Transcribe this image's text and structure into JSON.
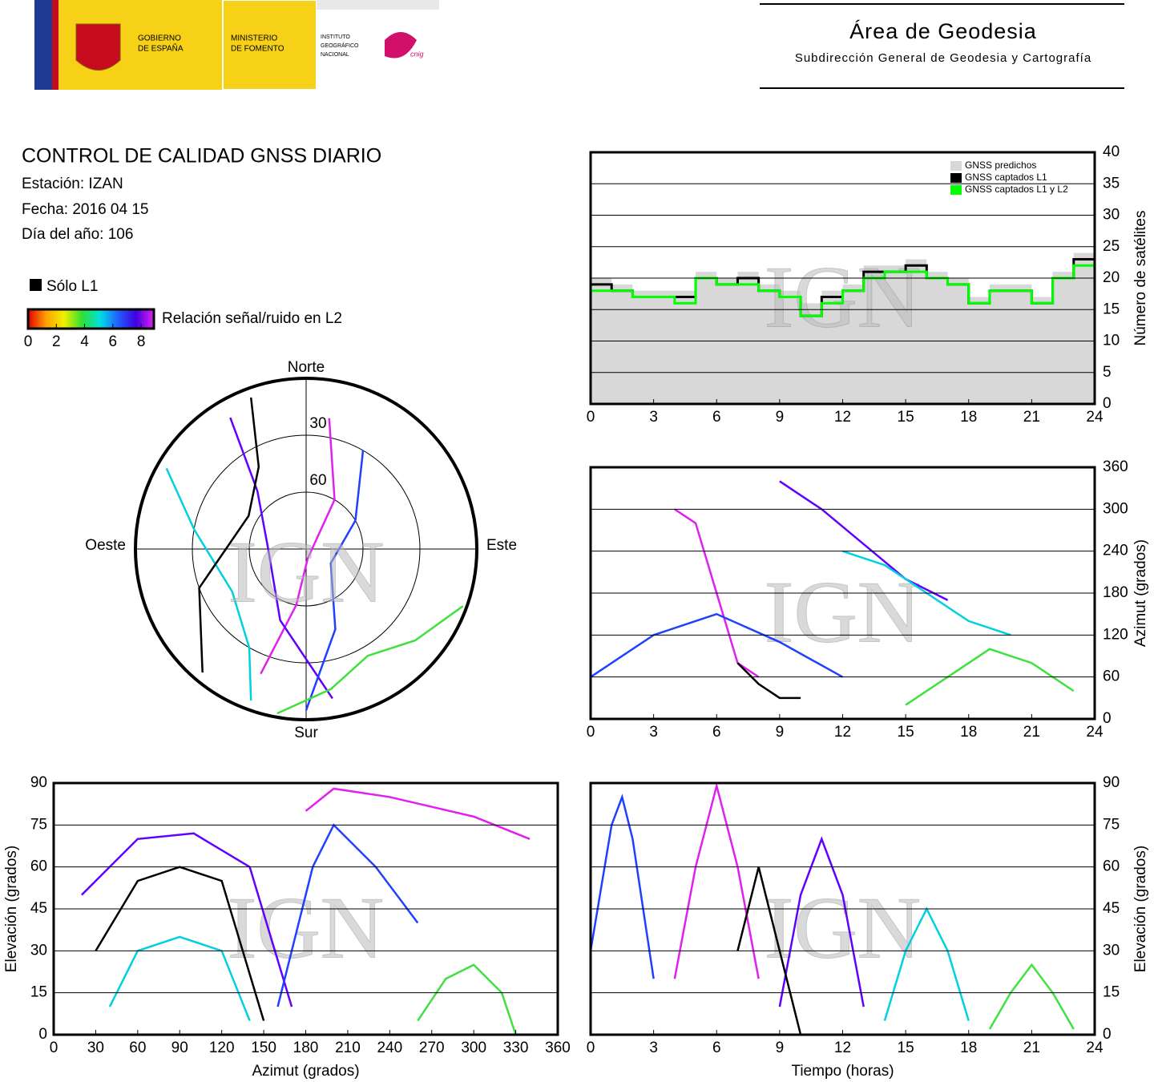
{
  "header": {
    "gobierno": [
      "GOBIERNO",
      "DE ESPAÑA"
    ],
    "ministerio": [
      "MINISTERIO",
      "DE FOMENTO"
    ],
    "instituto": [
      "INSTITUTO",
      "GEOGRÁFICO",
      "NACIONAL"
    ],
    "cnig": "cnig",
    "area": "Área de Geodesia",
    "subdireccion": "Subdirección General de Geodesia y Cartografía"
  },
  "info": {
    "title": "CONTROL DE CALIDAD GNSS DIARIO",
    "station": "Estación: IZAN",
    "date": "Fecha: 2016 04 15",
    "doy": "Día del año: 106"
  },
  "legend": {
    "l1_only": "Sólo L1",
    "snr_label": "Relación señal/ruido en L2",
    "snr_ticks": [
      0,
      2,
      4,
      6,
      8
    ],
    "snr_lim": [
      0,
      8.9
    ],
    "snr_colors": [
      "#e00000",
      "#ffa000",
      "#f0f000",
      "#30e030",
      "#00e0e0",
      "#2060ff",
      "#4000e0",
      "#e020f0"
    ]
  },
  "chart_data": [
    {
      "type": "step",
      "watermark": "IGN",
      "ylabel": "Número de satélites",
      "xlim": [
        0,
        24
      ],
      "ylim": [
        0,
        40
      ],
      "xticks": [
        0,
        3,
        6,
        9,
        12,
        15,
        18,
        21,
        24
      ],
      "yticks": [
        0,
        5,
        10,
        15,
        20,
        25,
        30,
        35,
        40
      ],
      "grid": true,
      "legend": "upper right",
      "x": [
        0,
        1,
        2,
        3,
        4,
        5,
        6,
        7,
        8,
        9,
        10,
        11,
        12,
        13,
        14,
        15,
        16,
        17,
        18,
        19,
        20,
        21,
        22,
        23,
        24
      ],
      "series": [
        {
          "name": "GNSS predichos",
          "color": "#d8d8d8",
          "fill": true,
          "values": [
            20,
            19,
            18,
            18,
            18,
            21,
            20,
            21,
            19,
            18,
            16,
            18,
            19,
            22,
            22,
            23,
            21,
            20,
            17,
            19,
            19,
            17,
            21,
            24,
            21
          ]
        },
        {
          "name": "GNSS captados L1",
          "color": "#000000",
          "values": [
            19,
            18,
            17,
            17,
            17,
            20,
            19,
            20,
            18,
            17,
            14,
            17,
            18,
            21,
            21,
            22,
            20,
            19,
            16,
            18,
            18,
            16,
            20,
            23,
            20
          ]
        },
        {
          "name": "GNSS captados L1 y L2",
          "color": "#00ff00",
          "values": [
            18,
            18,
            17,
            17,
            16,
            20,
            19,
            19,
            18,
            17,
            14,
            16,
            18,
            20,
            21,
            21,
            20,
            19,
            16,
            18,
            18,
            16,
            20,
            22,
            19
          ]
        }
      ]
    },
    {
      "type": "polar",
      "watermark": "IGN",
      "directions": {
        "north": "Norte",
        "south": "Sur",
        "east": "Este",
        "west": "Oeste"
      },
      "rlim": [
        0,
        90
      ],
      "rticks": [
        30,
        60
      ],
      "series": [
        {
          "color": "#e020f0",
          "x": [
            200,
            190,
            170,
            30,
            10
          ],
          "values": [
            20,
            60,
            85,
            60,
            20
          ]
        },
        {
          "color": "#6000ff",
          "x": [
            330,
            320,
            270,
            200,
            170
          ],
          "values": [
            10,
            50,
            70,
            50,
            10
          ]
        },
        {
          "color": "#2040ff",
          "x": [
            30,
            60,
            120,
            160,
            180
          ],
          "values": [
            30,
            60,
            75,
            45,
            5
          ]
        },
        {
          "color": "#00d0e0",
          "x": [
            300,
            280,
            240,
            210,
            200
          ],
          "values": [
            5,
            30,
            45,
            30,
            5
          ]
        },
        {
          "color": "#40e040",
          "x": [
            110,
            130,
            150,
            170,
            190
          ],
          "values": [
            2,
            15,
            25,
            15,
            2
          ]
        },
        {
          "color": "#000000",
          "x": [
            340,
            330,
            300,
            250,
            220
          ],
          "values": [
            5,
            40,
            55,
            30,
            5
          ]
        }
      ]
    },
    {
      "type": "line",
      "watermark": "IGN",
      "ylabel": "Azimut (grados)",
      "xlim": [
        0,
        24
      ],
      "ylim": [
        0,
        360
      ],
      "xticks": [
        0,
        3,
        6,
        9,
        12,
        15,
        18,
        21,
        24
      ],
      "yticks": [
        0,
        60,
        120,
        180,
        240,
        300,
        360
      ],
      "grid": true,
      "series": [
        {
          "color": "#e020f0",
          "x": [
            4,
            5,
            6,
            7,
            8
          ],
          "values": [
            300,
            280,
            180,
            80,
            60
          ]
        },
        {
          "color": "#6000ff",
          "x": [
            9,
            11,
            13,
            15,
            17
          ],
          "values": [
            340,
            300,
            250,
            200,
            170
          ]
        },
        {
          "color": "#2040ff",
          "x": [
            0,
            3,
            6,
            9,
            12
          ],
          "values": [
            60,
            120,
            150,
            110,
            60
          ]
        },
        {
          "color": "#00d0e0",
          "x": [
            12,
            14,
            16,
            18,
            20
          ],
          "values": [
            240,
            220,
            180,
            140,
            120
          ]
        },
        {
          "color": "#40e040",
          "x": [
            15,
            17,
            19,
            21,
            23
          ],
          "values": [
            20,
            60,
            100,
            80,
            40
          ]
        },
        {
          "color": "#000000",
          "x": [
            7,
            8,
            9,
            10
          ],
          "values": [
            80,
            50,
            30,
            30
          ]
        }
      ]
    },
    {
      "type": "line",
      "watermark": "IGN",
      "xlabel": "Azimut (grados)",
      "ylabel": "Elevación (grados)",
      "xlim": [
        0,
        360
      ],
      "ylim": [
        0,
        90
      ],
      "xticks": [
        0,
        30,
        60,
        90,
        120,
        150,
        180,
        210,
        240,
        270,
        300,
        330,
        360
      ],
      "yticks": [
        0,
        15,
        30,
        45,
        60,
        75,
        90
      ],
      "grid": true,
      "series": [
        {
          "color": "#e020f0",
          "x": [
            180,
            200,
            240,
            300,
            340
          ],
          "values": [
            80,
            88,
            85,
            78,
            70
          ]
        },
        {
          "color": "#6000ff",
          "x": [
            20,
            60,
            100,
            140,
            170
          ],
          "values": [
            50,
            70,
            72,
            60,
            10
          ]
        },
        {
          "color": "#2040ff",
          "x": [
            160,
            185,
            200,
            230,
            260
          ],
          "values": [
            10,
            60,
            75,
            60,
            40
          ]
        },
        {
          "color": "#00d0e0",
          "x": [
            40,
            60,
            90,
            120,
            140
          ],
          "values": [
            10,
            30,
            35,
            30,
            5
          ]
        },
        {
          "color": "#40e040",
          "x": [
            260,
            280,
            300,
            320,
            330
          ],
          "values": [
            5,
            20,
            25,
            15,
            0
          ]
        },
        {
          "color": "#000000",
          "x": [
            30,
            60,
            90,
            120,
            150
          ],
          "values": [
            30,
            55,
            60,
            55,
            5
          ]
        }
      ]
    },
    {
      "type": "line",
      "watermark": "IGN",
      "xlabel": "Tiempo (horas)",
      "ylabel": "Elevación (grados)",
      "xlim": [
        0,
        24
      ],
      "ylim": [
        0,
        90
      ],
      "xticks": [
        0,
        3,
        6,
        9,
        12,
        15,
        18,
        21,
        24
      ],
      "yticks": [
        0,
        15,
        30,
        45,
        60,
        75,
        90
      ],
      "grid": true,
      "series": [
        {
          "color": "#e020f0",
          "x": [
            4,
            5,
            6,
            7,
            8
          ],
          "values": [
            20,
            60,
            89,
            60,
            20
          ]
        },
        {
          "color": "#6000ff",
          "x": [
            9,
            10,
            11,
            12,
            13
          ],
          "values": [
            10,
            50,
            70,
            50,
            10
          ]
        },
        {
          "color": "#2040ff",
          "x": [
            0,
            1,
            1.5,
            2,
            3
          ],
          "values": [
            30,
            75,
            85,
            70,
            20
          ]
        },
        {
          "color": "#00d0e0",
          "x": [
            14,
            15,
            16,
            17,
            18
          ],
          "values": [
            5,
            30,
            45,
            30,
            5
          ]
        },
        {
          "color": "#40e040",
          "x": [
            19,
            20,
            21,
            22,
            23
          ],
          "values": [
            2,
            15,
            25,
            15,
            2
          ]
        },
        {
          "color": "#000000",
          "x": [
            7,
            8,
            9,
            10
          ],
          "values": [
            30,
            60,
            30,
            0
          ]
        }
      ]
    }
  ]
}
